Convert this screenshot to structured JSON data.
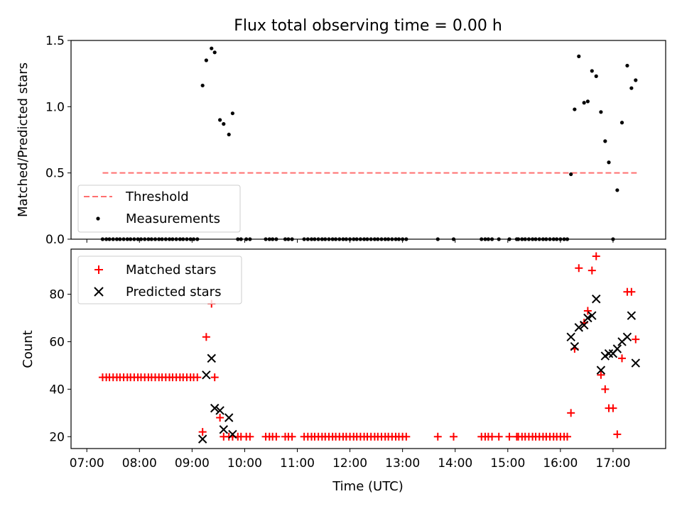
{
  "figure": {
    "title": "Flux total observing time = 0.00 h"
  },
  "chart_data": [
    {
      "type": "scatter",
      "ylabel": "Matched/Predicted stars",
      "xlabel": "",
      "xlim": [
        6.7,
        18.0
      ],
      "ylim": [
        0.0,
        1.5
      ],
      "yticks": [
        0.0,
        0.5,
        1.0,
        1.5
      ],
      "ytick_labels": [
        "0.0",
        "0.5",
        "1.0",
        "1.5"
      ],
      "legend": {
        "placement": "lower-left",
        "entries": [
          "Threshold",
          "Measurements"
        ]
      },
      "threshold": {
        "name": "Threshold",
        "color": "#ff6f6f",
        "style": "dashed",
        "value": 0.5,
        "x": [
          7.3,
          17.45
        ]
      },
      "series": [
        {
          "name": "Measurements",
          "color": "#000000",
          "marker": "dot",
          "points": [
            [
              7.3,
              0
            ],
            [
              7.37,
              0
            ],
            [
              7.43,
              0
            ],
            [
              7.5,
              0
            ],
            [
              7.57,
              0
            ],
            [
              7.63,
              0
            ],
            [
              7.7,
              0
            ],
            [
              7.77,
              0
            ],
            [
              7.83,
              0
            ],
            [
              7.9,
              0
            ],
            [
              7.97,
              0
            ],
            [
              8.03,
              0
            ],
            [
              8.1,
              0
            ],
            [
              8.17,
              0
            ],
            [
              8.23,
              0
            ],
            [
              8.3,
              0
            ],
            [
              8.37,
              0
            ],
            [
              8.43,
              0
            ],
            [
              8.5,
              0
            ],
            [
              8.57,
              0
            ],
            [
              8.63,
              0
            ],
            [
              8.7,
              0
            ],
            [
              8.77,
              0
            ],
            [
              8.83,
              0
            ],
            [
              8.9,
              0
            ],
            [
              8.97,
              0
            ],
            [
              9.03,
              0
            ],
            [
              9.1,
              0
            ],
            [
              9.2,
              1.16
            ],
            [
              9.27,
              1.35
            ],
            [
              9.37,
              1.44
            ],
            [
              9.43,
              1.41
            ],
            [
              9.53,
              0.9
            ],
            [
              9.6,
              0.87
            ],
            [
              9.7,
              0.79
            ],
            [
              9.77,
              0.95
            ],
            [
              9.87,
              0
            ],
            [
              9.93,
              0
            ],
            [
              10.03,
              0
            ],
            [
              10.1,
              0
            ],
            [
              10.4,
              0
            ],
            [
              10.47,
              0
            ],
            [
              10.53,
              0
            ],
            [
              10.6,
              0
            ],
            [
              10.77,
              0
            ],
            [
              10.83,
              0
            ],
            [
              10.9,
              0
            ],
            [
              11.13,
              0
            ],
            [
              11.2,
              0
            ],
            [
              11.27,
              0
            ],
            [
              11.33,
              0
            ],
            [
              11.4,
              0
            ],
            [
              11.47,
              0
            ],
            [
              11.53,
              0
            ],
            [
              11.6,
              0
            ],
            [
              11.67,
              0
            ],
            [
              11.73,
              0
            ],
            [
              11.8,
              0
            ],
            [
              11.87,
              0
            ],
            [
              11.93,
              0
            ],
            [
              12.0,
              0
            ],
            [
              12.07,
              0
            ],
            [
              12.13,
              0
            ],
            [
              12.2,
              0
            ],
            [
              12.27,
              0
            ],
            [
              12.33,
              0
            ],
            [
              12.4,
              0
            ],
            [
              12.47,
              0
            ],
            [
              12.53,
              0
            ],
            [
              12.6,
              0
            ],
            [
              12.67,
              0
            ],
            [
              12.73,
              0
            ],
            [
              12.8,
              0
            ],
            [
              12.87,
              0
            ],
            [
              12.93,
              0
            ],
            [
              13.0,
              0
            ],
            [
              13.07,
              0
            ],
            [
              13.67,
              0
            ],
            [
              13.97,
              0
            ],
            [
              14.5,
              0
            ],
            [
              14.57,
              0
            ],
            [
              14.63,
              0
            ],
            [
              14.7,
              0
            ],
            [
              14.83,
              0
            ],
            [
              15.03,
              0
            ],
            [
              15.17,
              0
            ],
            [
              15.2,
              0
            ],
            [
              15.27,
              0
            ],
            [
              15.33,
              0
            ],
            [
              15.4,
              0
            ],
            [
              15.47,
              0
            ],
            [
              15.53,
              0
            ],
            [
              15.6,
              0
            ],
            [
              15.67,
              0
            ],
            [
              15.73,
              0
            ],
            [
              15.8,
              0
            ],
            [
              15.87,
              0
            ],
            [
              15.93,
              0
            ],
            [
              16.0,
              0
            ],
            [
              16.07,
              0
            ],
            [
              16.13,
              0
            ],
            [
              16.2,
              0.49
            ],
            [
              16.27,
              0.98
            ],
            [
              16.35,
              1.38
            ],
            [
              16.45,
              1.03
            ],
            [
              16.52,
              1.04
            ],
            [
              16.6,
              1.27
            ],
            [
              16.68,
              1.23
            ],
            [
              16.77,
              0.96
            ],
            [
              16.85,
              0.74
            ],
            [
              16.92,
              0.58
            ],
            [
              17.0,
              0.0
            ],
            [
              17.08,
              0.37
            ],
            [
              17.17,
              0.88
            ],
            [
              17.27,
              1.31
            ],
            [
              17.35,
              1.14
            ],
            [
              17.43,
              1.2
            ]
          ]
        }
      ]
    },
    {
      "type": "scatter",
      "ylabel": "Count",
      "xlabel": "Time (UTC)",
      "xlim": [
        6.7,
        18.0
      ],
      "ylim": [
        15,
        99
      ],
      "yticks": [
        20,
        40,
        60,
        80
      ],
      "ytick_labels": [
        "20",
        "40",
        "60",
        "80"
      ],
      "xticks": [
        7,
        8,
        9,
        10,
        11,
        12,
        13,
        14,
        15,
        16,
        17
      ],
      "xtick_labels": [
        "07:00",
        "08:00",
        "09:00",
        "10:00",
        "11:00",
        "12:00",
        "13:00",
        "14:00",
        "15:00",
        "16:00",
        "17:00"
      ],
      "legend": {
        "placement": "upper-left",
        "entries": [
          "Matched stars",
          "Predicted stars"
        ]
      },
      "series": [
        {
          "name": "Matched stars",
          "color": "#ff0000",
          "marker": "plus",
          "points": [
            [
              7.3,
              45
            ],
            [
              7.37,
              45
            ],
            [
              7.43,
              45
            ],
            [
              7.5,
              45
            ],
            [
              7.57,
              45
            ],
            [
              7.63,
              45
            ],
            [
              7.7,
              45
            ],
            [
              7.77,
              45
            ],
            [
              7.83,
              45
            ],
            [
              7.9,
              45
            ],
            [
              7.97,
              45
            ],
            [
              8.03,
              45
            ],
            [
              8.1,
              45
            ],
            [
              8.17,
              45
            ],
            [
              8.23,
              45
            ],
            [
              8.3,
              45
            ],
            [
              8.37,
              45
            ],
            [
              8.43,
              45
            ],
            [
              8.5,
              45
            ],
            [
              8.57,
              45
            ],
            [
              8.63,
              45
            ],
            [
              8.7,
              45
            ],
            [
              8.77,
              45
            ],
            [
              8.83,
              45
            ],
            [
              8.9,
              45
            ],
            [
              8.97,
              45
            ],
            [
              9.03,
              45
            ],
            [
              9.1,
              45
            ],
            [
              9.2,
              22
            ],
            [
              9.27,
              62
            ],
            [
              9.37,
              76
            ],
            [
              9.43,
              45
            ],
            [
              9.53,
              28
            ],
            [
              9.6,
              20
            ],
            [
              9.7,
              20
            ],
            [
              9.77,
              20
            ],
            [
              9.87,
              20
            ],
            [
              9.93,
              20
            ],
            [
              10.03,
              20
            ],
            [
              10.1,
              20
            ],
            [
              10.4,
              20
            ],
            [
              10.47,
              20
            ],
            [
              10.53,
              20
            ],
            [
              10.6,
              20
            ],
            [
              10.77,
              20
            ],
            [
              10.83,
              20
            ],
            [
              10.9,
              20
            ],
            [
              11.13,
              20
            ],
            [
              11.2,
              20
            ],
            [
              11.27,
              20
            ],
            [
              11.33,
              20
            ],
            [
              11.4,
              20
            ],
            [
              11.47,
              20
            ],
            [
              11.53,
              20
            ],
            [
              11.6,
              20
            ],
            [
              11.67,
              20
            ],
            [
              11.73,
              20
            ],
            [
              11.8,
              20
            ],
            [
              11.87,
              20
            ],
            [
              11.93,
              20
            ],
            [
              12.0,
              20
            ],
            [
              12.07,
              20
            ],
            [
              12.13,
              20
            ],
            [
              12.2,
              20
            ],
            [
              12.27,
              20
            ],
            [
              12.33,
              20
            ],
            [
              12.4,
              20
            ],
            [
              12.47,
              20
            ],
            [
              12.53,
              20
            ],
            [
              12.6,
              20
            ],
            [
              12.67,
              20
            ],
            [
              12.73,
              20
            ],
            [
              12.8,
              20
            ],
            [
              12.87,
              20
            ],
            [
              12.93,
              20
            ],
            [
              13.0,
              20
            ],
            [
              13.07,
              20
            ],
            [
              13.67,
              20
            ],
            [
              13.97,
              20
            ],
            [
              14.5,
              20
            ],
            [
              14.57,
              20
            ],
            [
              14.63,
              20
            ],
            [
              14.7,
              20
            ],
            [
              14.83,
              20
            ],
            [
              15.03,
              20
            ],
            [
              15.17,
              20
            ],
            [
              15.2,
              20
            ],
            [
              15.27,
              20
            ],
            [
              15.33,
              20
            ],
            [
              15.4,
              20
            ],
            [
              15.47,
              20
            ],
            [
              15.53,
              20
            ],
            [
              15.6,
              20
            ],
            [
              15.67,
              20
            ],
            [
              15.73,
              20
            ],
            [
              15.8,
              20
            ],
            [
              15.87,
              20
            ],
            [
              15.93,
              20
            ],
            [
              16.0,
              20
            ],
            [
              16.07,
              20
            ],
            [
              16.13,
              20
            ],
            [
              16.2,
              30
            ],
            [
              16.27,
              57
            ],
            [
              16.35,
              91
            ],
            [
              16.45,
              68
            ],
            [
              16.52,
              73
            ],
            [
              16.6,
              90
            ],
            [
              16.68,
              96
            ],
            [
              16.77,
              46
            ],
            [
              16.85,
              40
            ],
            [
              16.92,
              32
            ],
            [
              17.0,
              32
            ],
            [
              17.08,
              21
            ],
            [
              17.17,
              53
            ],
            [
              17.27,
              81
            ],
            [
              17.35,
              81
            ],
            [
              17.43,
              61
            ]
          ]
        },
        {
          "name": "Predicted stars",
          "color": "#000000",
          "marker": "x",
          "points": [
            [
              9.2,
              19
            ],
            [
              9.27,
              46
            ],
            [
              9.37,
              53
            ],
            [
              9.43,
              32
            ],
            [
              9.53,
              31
            ],
            [
              9.6,
              23
            ],
            [
              9.7,
              28
            ],
            [
              9.77,
              21
            ],
            [
              16.2,
              62
            ],
            [
              16.27,
              58
            ],
            [
              16.35,
              66
            ],
            [
              16.45,
              67
            ],
            [
              16.52,
              70
            ],
            [
              16.6,
              71
            ],
            [
              16.68,
              78
            ],
            [
              16.77,
              48
            ],
            [
              16.85,
              54
            ],
            [
              16.92,
              55
            ],
            [
              17.0,
              55
            ],
            [
              17.08,
              57
            ],
            [
              17.17,
              60
            ],
            [
              17.27,
              62
            ],
            [
              17.35,
              71
            ],
            [
              17.43,
              51
            ]
          ]
        }
      ]
    }
  ]
}
